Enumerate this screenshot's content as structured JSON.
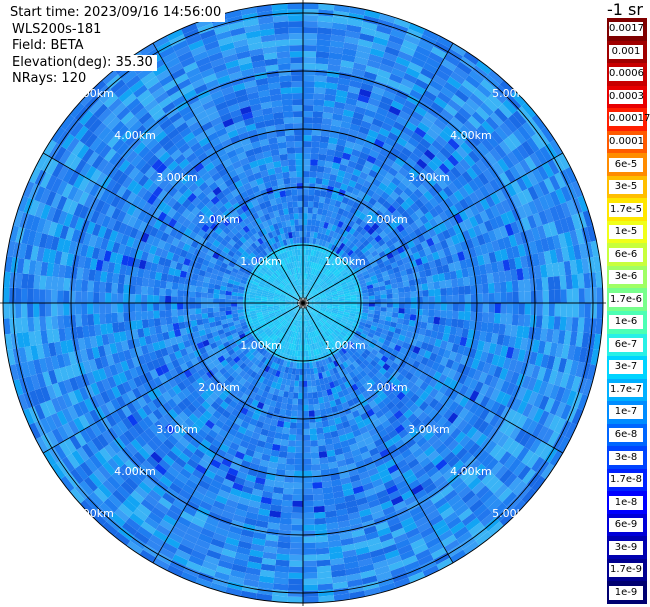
{
  "header": {
    "start_time": "Start time: 2023/09/16 14:56:00",
    "instrument": "WLS200s-181",
    "field": "Field: BETA",
    "elevation": "Elevation(deg): 35.30",
    "nrays": "NRays: 120"
  },
  "units_label": "-1 sr",
  "range_rings": [
    "1.00km",
    "2.00km",
    "3.00km",
    "4.00km",
    "5.00km"
  ],
  "colorbar": {
    "ticks": [
      "0.0017",
      "0.001",
      "0.0006",
      "0.0003",
      "0.00017",
      "0.0001",
      "6e-5",
      "3e-5",
      "1.7e-5",
      "1e-5",
      "6e-6",
      "3e-6",
      "1.7e-6",
      "1e-6",
      "6e-7",
      "3e-7",
      "1.7e-7",
      "1e-7",
      "6e-8",
      "3e-8",
      "1.7e-8",
      "1e-8",
      "6e-9",
      "3e-9",
      "1.7e-9",
      "1e-9"
    ],
    "colors": [
      "#7f0000",
      "#a00000",
      "#c80000",
      "#e80000",
      "#ff1e00",
      "#ff5a00",
      "#ff8c00",
      "#ffbe00",
      "#ffe600",
      "#f0ff1a",
      "#c8ff3c",
      "#a0ff64",
      "#78ff8c",
      "#4cffb4",
      "#28f0e6",
      "#00d4ff",
      "#00b0ff",
      "#008cff",
      "#0066ff",
      "#0044ff",
      "#0022ff",
      "#0000ff",
      "#0000d8",
      "#0000b0",
      "#000090",
      "#000070"
    ]
  }
}
